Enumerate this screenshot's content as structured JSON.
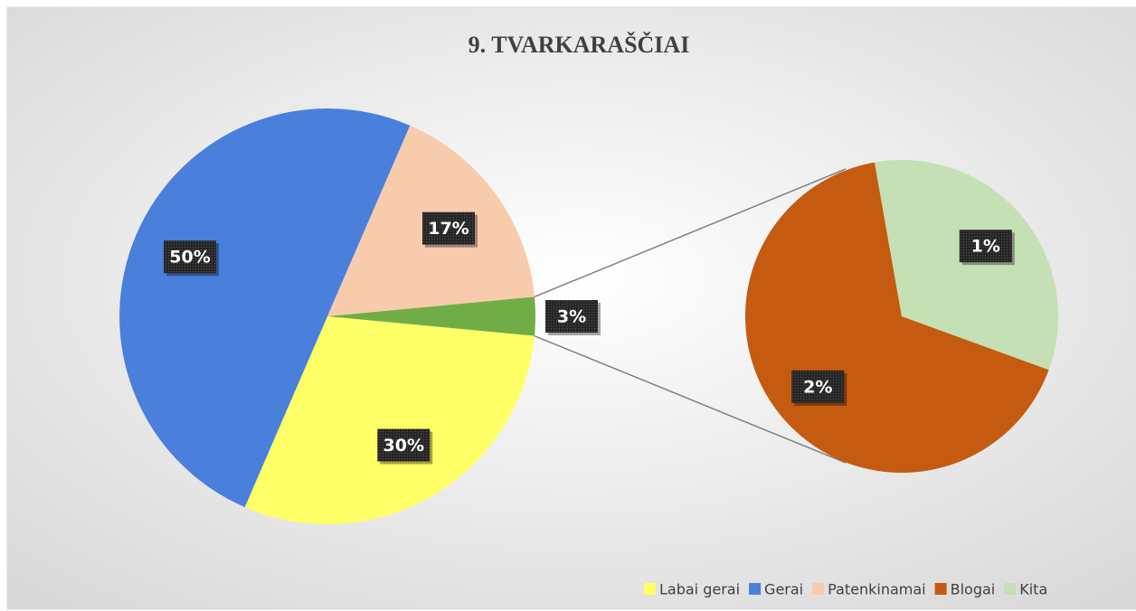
{
  "chart_data": {
    "type": "pie-of-pie",
    "title": "9. TVARKARAŠČIAI",
    "categories": [
      "Labai gerai",
      "Gerai",
      "Patenkinamai",
      null
    ],
    "values": [
      30,
      50,
      17,
      3
    ],
    "value_labels": [
      "30%",
      "50%",
      "17%",
      "3%"
    ],
    "colors": [
      "#ffff66",
      "#4a7fdb",
      "#f8cbad",
      "#70ad47"
    ],
    "secondary": {
      "categories": [
        "Blogai",
        "Kita"
      ],
      "values": [
        2,
        1
      ],
      "value_labels": [
        "2%",
        "1%"
      ],
      "colors": [
        "#c55a11",
        "#c5e0b4"
      ]
    },
    "legend": "bottom-right"
  }
}
